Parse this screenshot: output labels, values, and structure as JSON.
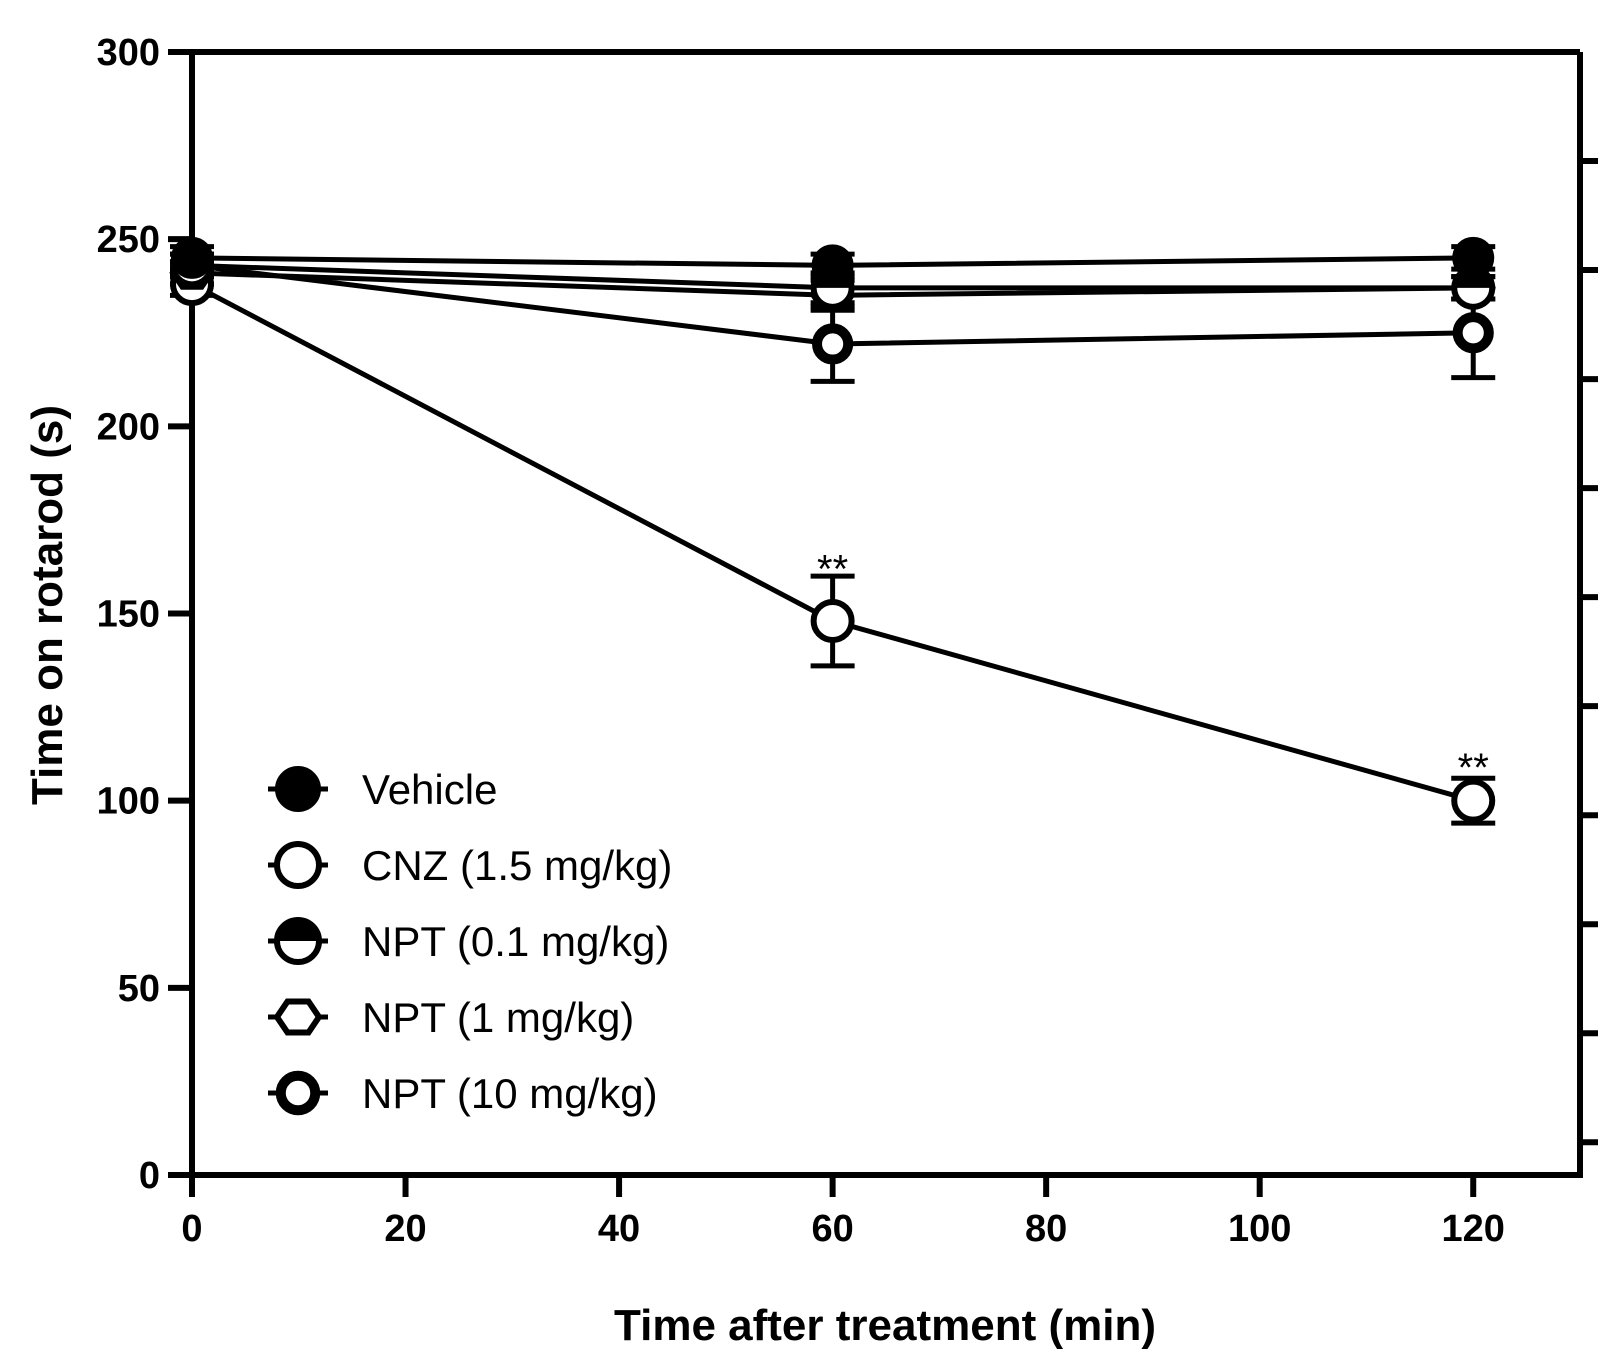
{
  "chart_data": {
    "type": "line",
    "title": "",
    "xlabel": "Time after treatment (min)",
    "ylabel": "Time on rotarod (s)",
    "xlim": [
      0,
      130
    ],
    "ylim": [
      0,
      300
    ],
    "xticks": [
      0,
      20,
      40,
      60,
      80,
      100,
      120
    ],
    "yticks": [
      0,
      50,
      100,
      150,
      200,
      250,
      300
    ],
    "x": [
      0,
      60,
      120
    ],
    "series": [
      {
        "name": "Vehicle",
        "marker": "filled-circle",
        "values": [
          245,
          243,
          245
        ],
        "error": [
          3,
          3,
          3
        ]
      },
      {
        "name": "CNZ (1.5 mg/kg)",
        "marker": "open-circle",
        "values": [
          238,
          148,
          100
        ],
        "error": [
          3,
          12,
          6
        ]
      },
      {
        "name": "NPT (0.1 mg/kg)",
        "marker": "half-filled-circle",
        "values": [
          243,
          237,
          237
        ],
        "error": [
          3,
          4,
          3
        ]
      },
      {
        "name": "NPT (1 mg/kg)",
        "marker": "hexagon",
        "values": [
          241,
          235,
          237
        ],
        "error": [
          3,
          4,
          3
        ]
      },
      {
        "name": "NPT (10 mg/kg)",
        "marker": "small-circle",
        "values": [
          243,
          222,
          225
        ],
        "error": [
          3,
          10,
          12
        ]
      }
    ],
    "annotations": [
      {
        "text": "**",
        "x": 60,
        "y": 162
      },
      {
        "text": "**",
        "x": 120,
        "y": 109
      }
    ],
    "legend_position": "bottom-left",
    "grid": false
  }
}
